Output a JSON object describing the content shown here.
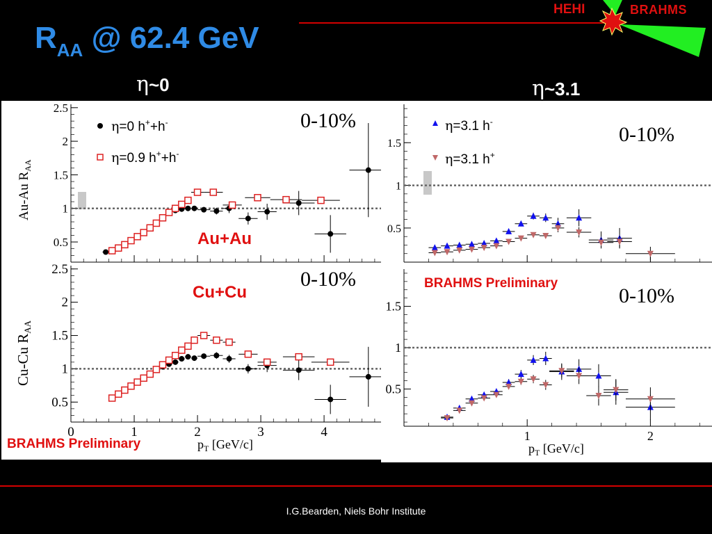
{
  "title": {
    "main": "R",
    "sub": "AA",
    "rest": " @ 62.4 GeV"
  },
  "headings": {
    "left": {
      "eta": "η",
      "label": "~0"
    },
    "right": {
      "eta": "η",
      "label": "~3.1"
    }
  },
  "logo": {
    "hehi": "HEHI",
    "brahms": "BRAHMS"
  },
  "footer": "I.G.Bearden, Niels Bohr Institute",
  "colors": {
    "title": "#2f8be6",
    "accent_red": "#d40000",
    "logo_green": "#22ee22",
    "blue_marker": "#1111ee",
    "pink_marker": "#c06868",
    "open_red": "#dd2222"
  },
  "left_panel": {
    "top_label": "Au+Au",
    "bottom_label": "Cu+Cu",
    "preliminary": "BRAHMS Preliminary",
    "centrality": "0-10%",
    "xlabel_main": "p",
    "xlabel_sub": "T",
    "xlabel_unit": " [GeV/c]",
    "top_ylabel": {
      "main": "Au-Au R",
      "sub": "AA"
    },
    "bottom_ylabel": {
      "main": "Cu-Cu R",
      "sub": "AA"
    },
    "legend": [
      {
        "eta": "η",
        "text": "=0 h",
        "sup1": "+",
        "mid": "+h",
        "sup2": "-"
      },
      {
        "eta": "η",
        "text": "=0.9 h",
        "sup1": "+",
        "mid": "+h",
        "sup2": "-"
      }
    ]
  },
  "right_panel": {
    "preliminary": "BRAHMS Preliminary",
    "centrality": "0-10%",
    "xlabel_main": "p",
    "xlabel_sub": "T",
    "xlabel_unit": " [GeV/c]",
    "legend": [
      {
        "eta": "η",
        "text": "=3.1 h",
        "sup": "-"
      },
      {
        "eta": "η",
        "text": "=3.1 h",
        "sup": "+"
      }
    ]
  },
  "chart_data": [
    {
      "type": "scatter",
      "panel": "Au+Au, η~0",
      "ylabel": "Au-Au R_AA",
      "xlim": [
        0,
        4.9
      ],
      "ylim": [
        0.2,
        2.55
      ],
      "yticks": [
        0.5,
        1,
        1.5,
        2,
        2.5
      ],
      "xticks": [
        0,
        1,
        2,
        3,
        4
      ],
      "reference_line": 1,
      "series": [
        {
          "name": "η=0 h⁺+h⁻",
          "marker": "filled-circle",
          "color": "#000000",
          "x": [
            0.55,
            0.65,
            0.75,
            0.85,
            0.95,
            1.05,
            1.15,
            1.25,
            1.35,
            1.45,
            1.55,
            1.65,
            1.75,
            1.85,
            1.95,
            2.1,
            2.3,
            2.5,
            2.8,
            3.1,
            3.6,
            4.1,
            4.7
          ],
          "y": [
            0.35,
            0.38,
            0.42,
            0.47,
            0.53,
            0.59,
            0.65,
            0.72,
            0.79,
            0.86,
            0.93,
            0.97,
            0.99,
            1.0,
            1.0,
            0.98,
            0.96,
            1.0,
            0.85,
            0.95,
            1.08,
            0.62,
            1.57
          ],
          "yerr": [
            0.01,
            0.01,
            0.01,
            0.01,
            0.01,
            0.01,
            0.01,
            0.01,
            0.01,
            0.01,
            0.01,
            0.01,
            0.02,
            0.02,
            0.03,
            0.04,
            0.05,
            0.07,
            0.09,
            0.12,
            0.18,
            0.28,
            0.7
          ],
          "xerr": [
            0.05,
            0.05,
            0.05,
            0.05,
            0.05,
            0.05,
            0.05,
            0.05,
            0.05,
            0.05,
            0.05,
            0.05,
            0.05,
            0.05,
            0.05,
            0.1,
            0.1,
            0.1,
            0.15,
            0.15,
            0.25,
            0.25,
            0.3
          ]
        },
        {
          "name": "η=0.9 h⁺+h⁻",
          "marker": "open-square",
          "color": "#dd2222",
          "x": [
            0.65,
            0.75,
            0.85,
            0.95,
            1.05,
            1.15,
            1.25,
            1.35,
            1.45,
            1.55,
            1.65,
            1.75,
            1.85,
            2.0,
            2.25,
            2.55,
            2.95,
            3.4,
            3.95
          ],
          "y": [
            0.37,
            0.41,
            0.46,
            0.52,
            0.58,
            0.64,
            0.71,
            0.78,
            0.86,
            0.94,
            1.0,
            1.06,
            1.12,
            1.24,
            1.24,
            1.05,
            1.16,
            1.13,
            1.12
          ],
          "xerr": [
            0.05,
            0.05,
            0.05,
            0.05,
            0.05,
            0.05,
            0.05,
            0.05,
            0.05,
            0.05,
            0.05,
            0.05,
            0.05,
            0.1,
            0.15,
            0.15,
            0.2,
            0.25,
            0.3
          ]
        }
      ]
    },
    {
      "type": "scatter",
      "panel": "Cu+Cu, η~0",
      "ylabel": "Cu-Cu R_AA",
      "xlim": [
        0,
        4.9
      ],
      "ylim": [
        0.2,
        2.55
      ],
      "yticks": [
        0.5,
        1,
        1.5,
        2,
        2.5
      ],
      "xticks": [
        0,
        1,
        2,
        3,
        4
      ],
      "xlabel": "p_T [GeV/c]",
      "reference_line": 1,
      "series": [
        {
          "name": "η=0 h⁺+h⁻",
          "marker": "filled-circle",
          "color": "#000000",
          "x": [
            0.65,
            0.75,
            0.85,
            0.95,
            1.05,
            1.15,
            1.25,
            1.35,
            1.45,
            1.55,
            1.65,
            1.75,
            1.85,
            1.95,
            2.1,
            2.3,
            2.5,
            2.8,
            3.1,
            3.6,
            4.1,
            4.7
          ],
          "y": [
            0.57,
            0.63,
            0.69,
            0.75,
            0.81,
            0.87,
            0.93,
            0.98,
            1.03,
            1.07,
            1.1,
            1.15,
            1.18,
            1.16,
            1.19,
            1.2,
            1.15,
            1.0,
            1.05,
            0.98,
            0.54,
            0.88
          ],
          "yerr": [
            0.01,
            0.01,
            0.01,
            0.01,
            0.01,
            0.01,
            0.01,
            0.01,
            0.01,
            0.01,
            0.02,
            0.02,
            0.02,
            0.03,
            0.04,
            0.05,
            0.06,
            0.07,
            0.1,
            0.15,
            0.22,
            0.45
          ],
          "xerr": [
            0.05,
            0.05,
            0.05,
            0.05,
            0.05,
            0.05,
            0.05,
            0.05,
            0.05,
            0.05,
            0.05,
            0.05,
            0.05,
            0.05,
            0.1,
            0.1,
            0.1,
            0.15,
            0.15,
            0.25,
            0.25,
            0.3
          ]
        },
        {
          "name": "η=0.9 h⁺+h⁻",
          "marker": "open-square",
          "color": "#dd2222",
          "x": [
            0.65,
            0.75,
            0.85,
            0.95,
            1.05,
            1.15,
            1.25,
            1.35,
            1.45,
            1.55,
            1.65,
            1.75,
            1.85,
            1.95,
            2.1,
            2.3,
            2.5,
            2.8,
            3.1,
            3.6,
            4.1
          ],
          "y": [
            0.56,
            0.62,
            0.68,
            0.74,
            0.8,
            0.86,
            0.92,
            0.99,
            1.06,
            1.13,
            1.2,
            1.28,
            1.34,
            1.43,
            1.5,
            1.43,
            1.4,
            1.22,
            1.1,
            1.18,
            1.1
          ],
          "xerr": [
            0.05,
            0.05,
            0.05,
            0.05,
            0.05,
            0.05,
            0.05,
            0.05,
            0.05,
            0.05,
            0.05,
            0.05,
            0.05,
            0.05,
            0.1,
            0.1,
            0.1,
            0.15,
            0.15,
            0.25,
            0.3
          ]
        }
      ]
    },
    {
      "type": "scatter",
      "panel": "Au+Au, η~3.1",
      "xlim": [
        0,
        2.5
      ],
      "ylim": [
        0.1,
        1.95
      ],
      "yticks": [
        0.5,
        1,
        1.5
      ],
      "xticks": [
        1,
        2
      ],
      "reference_line": 1,
      "series": [
        {
          "name": "η=3.1 h⁻",
          "marker": "filled-triangle-up",
          "color": "#1111ee",
          "x": [
            0.25,
            0.35,
            0.45,
            0.55,
            0.65,
            0.75,
            0.85,
            0.95,
            1.05,
            1.15,
            1.25,
            1.42,
            1.6,
            1.75
          ],
          "y": [
            0.27,
            0.29,
            0.3,
            0.31,
            0.32,
            0.35,
            0.46,
            0.55,
            0.64,
            0.62,
            0.55,
            0.62,
            0.36,
            0.38
          ],
          "yerr": [
            0.01,
            0.01,
            0.01,
            0.01,
            0.01,
            0.02,
            0.02,
            0.03,
            0.04,
            0.05,
            0.07,
            0.1,
            0.1,
            0.12
          ],
          "xerr": [
            0.05,
            0.05,
            0.05,
            0.05,
            0.05,
            0.05,
            0.05,
            0.05,
            0.05,
            0.05,
            0.05,
            0.1,
            0.1,
            0.1
          ]
        },
        {
          "name": "η=3.1 h⁺",
          "marker": "filled-triangle-down",
          "color": "#c06868",
          "x": [
            0.25,
            0.35,
            0.45,
            0.55,
            0.65,
            0.75,
            0.85,
            0.95,
            1.05,
            1.15,
            1.25,
            1.42,
            1.6,
            1.75,
            2.0
          ],
          "y": [
            0.21,
            0.22,
            0.24,
            0.25,
            0.27,
            0.29,
            0.34,
            0.38,
            0.42,
            0.41,
            0.5,
            0.45,
            0.33,
            0.34,
            0.2
          ],
          "yerr": [
            0.01,
            0.01,
            0.01,
            0.01,
            0.01,
            0.01,
            0.02,
            0.02,
            0.02,
            0.03,
            0.05,
            0.06,
            0.06,
            0.07,
            0.08
          ],
          "xerr": [
            0.05,
            0.05,
            0.05,
            0.05,
            0.05,
            0.05,
            0.05,
            0.05,
            0.05,
            0.05,
            0.05,
            0.1,
            0.1,
            0.1,
            0.2
          ]
        }
      ]
    },
    {
      "type": "scatter",
      "panel": "Cu+Cu, η~3.1",
      "xlim": [
        0,
        2.5
      ],
      "ylim": [
        0.05,
        1.95
      ],
      "yticks": [
        0.5,
        1,
        1.5
      ],
      "xticks": [
        1,
        2
      ],
      "xlabel": "p_T [GeV/c]",
      "reference_line": 1,
      "series": [
        {
          "name": "η=3.1 h⁻",
          "marker": "filled-triangle-up",
          "color": "#1111ee",
          "x": [
            0.35,
            0.45,
            0.55,
            0.65,
            0.75,
            0.85,
            0.95,
            1.05,
            1.15,
            1.28,
            1.42,
            1.58,
            1.72,
            2.0
          ],
          "y": [
            0.16,
            0.27,
            0.38,
            0.43,
            0.47,
            0.58,
            0.68,
            0.85,
            0.87,
            0.71,
            0.74,
            0.66,
            0.46,
            0.28
          ],
          "yerr": [
            0.01,
            0.02,
            0.02,
            0.02,
            0.03,
            0.04,
            0.05,
            0.06,
            0.08,
            0.1,
            0.12,
            0.14,
            0.15,
            0.15
          ],
          "xerr": [
            0.05,
            0.05,
            0.05,
            0.05,
            0.05,
            0.05,
            0.05,
            0.05,
            0.05,
            0.1,
            0.1,
            0.1,
            0.1,
            0.2
          ]
        },
        {
          "name": "η=3.1 h⁺",
          "marker": "filled-triangle-down",
          "color": "#c06868",
          "x": [
            0.35,
            0.45,
            0.55,
            0.65,
            0.75,
            0.85,
            0.95,
            1.05,
            1.15,
            1.28,
            1.42,
            1.58,
            1.72,
            2.0
          ],
          "y": [
            0.15,
            0.24,
            0.33,
            0.39,
            0.43,
            0.53,
            0.59,
            0.62,
            0.55,
            0.72,
            0.66,
            0.42,
            0.49,
            0.38
          ],
          "yerr": [
            0.01,
            0.02,
            0.02,
            0.02,
            0.03,
            0.03,
            0.04,
            0.05,
            0.06,
            0.08,
            0.1,
            0.12,
            0.13,
            0.14
          ],
          "xerr": [
            0.05,
            0.05,
            0.05,
            0.05,
            0.05,
            0.05,
            0.05,
            0.05,
            0.05,
            0.1,
            0.1,
            0.1,
            0.1,
            0.2
          ]
        }
      ]
    }
  ]
}
